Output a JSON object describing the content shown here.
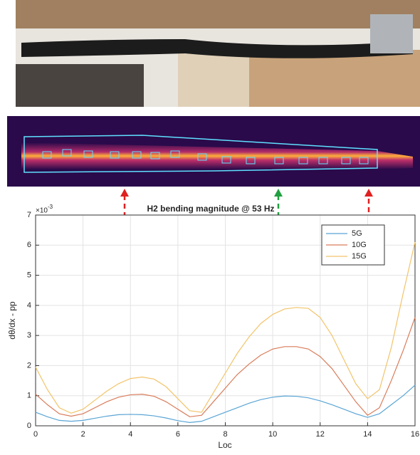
{
  "chart_data": {
    "type": "line",
    "title": "H2 bending magnitude @ 53 Hz",
    "x_label": "Loc",
    "y_label": "dθ/dx - pp",
    "y_multiplier_base": "×10",
    "y_multiplier_exponent": "-3",
    "x": [
      0,
      0.5,
      1,
      1.5,
      2,
      2.5,
      3,
      3.5,
      4,
      4.5,
      5,
      5.5,
      6,
      6.5,
      7,
      7.5,
      8,
      8.5,
      9,
      9.5,
      10,
      10.5,
      11,
      11.5,
      12,
      12.5,
      13,
      13.5,
      14,
      14.5,
      15,
      15.5,
      16
    ],
    "series": [
      {
        "name": "5G",
        "color": "#5aa5d5",
        "values": [
          0.45,
          0.3,
          0.18,
          0.15,
          0.18,
          0.25,
          0.32,
          0.37,
          0.38,
          0.37,
          0.33,
          0.26,
          0.17,
          0.11,
          0.15,
          0.3,
          0.45,
          0.6,
          0.75,
          0.87,
          0.95,
          0.99,
          0.98,
          0.93,
          0.83,
          0.7,
          0.55,
          0.4,
          0.28,
          0.4,
          0.7,
          1.0,
          1.35
        ]
      },
      {
        "name": "10G",
        "color": "#d97c5a",
        "values": [
          1.05,
          0.7,
          0.4,
          0.32,
          0.4,
          0.6,
          0.8,
          0.95,
          1.03,
          1.05,
          0.98,
          0.8,
          0.55,
          0.3,
          0.35,
          0.8,
          1.25,
          1.7,
          2.05,
          2.35,
          2.55,
          2.63,
          2.63,
          2.55,
          2.3,
          1.9,
          1.35,
          0.8,
          0.35,
          0.6,
          1.5,
          2.5,
          3.6
        ]
      },
      {
        "name": "15G",
        "color": "#f2c46a",
        "values": [
          1.95,
          1.2,
          0.6,
          0.42,
          0.55,
          0.85,
          1.15,
          1.4,
          1.57,
          1.62,
          1.55,
          1.3,
          0.9,
          0.5,
          0.45,
          1.1,
          1.75,
          2.4,
          2.95,
          3.4,
          3.7,
          3.88,
          3.93,
          3.9,
          3.6,
          3.0,
          2.2,
          1.4,
          0.9,
          1.2,
          2.6,
          4.4,
          6.1
        ]
      }
    ],
    "xlim": [
      0,
      16
    ],
    "xticks": [
      0,
      2,
      4,
      6,
      8,
      10,
      12,
      14,
      16
    ],
    "ylim": [
      0,
      7
    ],
    "yticks": [
      0,
      1,
      2,
      3,
      4,
      5,
      6,
      7
    ],
    "grid": true,
    "legend": "top-right"
  }
}
